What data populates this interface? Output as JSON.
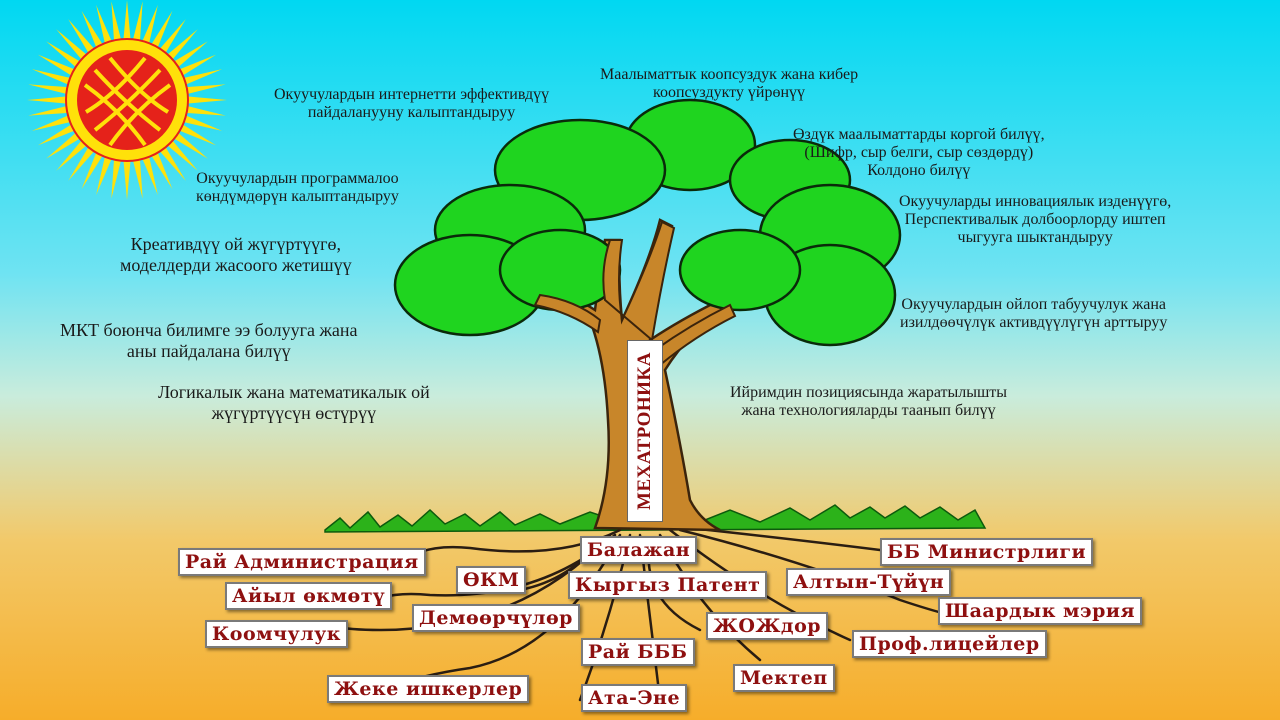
{
  "trunk_label": "МЕХАТРОНИКА",
  "colors": {
    "sky_top": "#00d8f2",
    "ground_bottom": "#f6ad2a",
    "leaves": "#1fd41f",
    "trunk": "#c8862a",
    "root_text": "#8e1010",
    "sun_red": "#e5221a",
    "sun_yellow": "#ffe10a"
  },
  "icons": {
    "sun": "kyrgyz-flag-sun-icon"
  },
  "goals": {
    "g1": "Маалыматтык коопсуздук жана кибер",
    "g1b": "коопсуздукту үйрөнүү",
    "g2": "Окуучулардын интернетти эффективдүү",
    "g2b": "пайдаланууну калыптандыруу",
    "g3": "Өздүк маалыматтарды коргой билүү,",
    "g3b": "(Шифр, сыр белги, сыр сөздөрдү)",
    "g3c": "Колдоно билүү",
    "g4": "Окуучулардын программалоо",
    "g4b": "көндүмдөрүн калыптандыруу",
    "g5": "Окуучуларды инновациялык изденүүгө,",
    "g5b": "Перспективалык долбоорлорду иштеп",
    "g5c": "чыгууга шыктандыруу",
    "g6": "Креативдүү  ой жүгүртүүгө,",
    "g6b": "моделдерди жасоого жетишүү",
    "g7": "Окуучулардын ойлоп табуучулук жана",
    "g7b": "изилдөөчүлүк активдүүлүгүн арттыруу",
    "g8": "МКТ боюнча билимге ээ болууга жана",
    "g8b": "аны пайдалана билүү",
    "g9": "Логикалык жана математикалык ой",
    "g9b": "жүгүртүүсүн өстүрүү",
    "g10": "Ийримдин позициясында жаратылышты",
    "g10b": "жана технологияларды таанып билүү"
  },
  "roots": {
    "r1": "Рай Администрация",
    "r2": "Балажан",
    "r3": "ББ Министрлиги",
    "r4": "ӨКМ",
    "r5": "Кыргыз Патент",
    "r6": "Алтын-Түйүн",
    "r7": "Айыл өкмөтү",
    "r8": "Шаардык мэрия",
    "r9": "Демөөрчүлөр",
    "r10": "ЖОЖдор",
    "r11": "Коомчулук",
    "r12": "Проф.лицейлер",
    "r13": "Рай БББ",
    "r14": "Мектеп",
    "r15": "Жеке ишкерлер",
    "r16": "Ата-Эне"
  }
}
